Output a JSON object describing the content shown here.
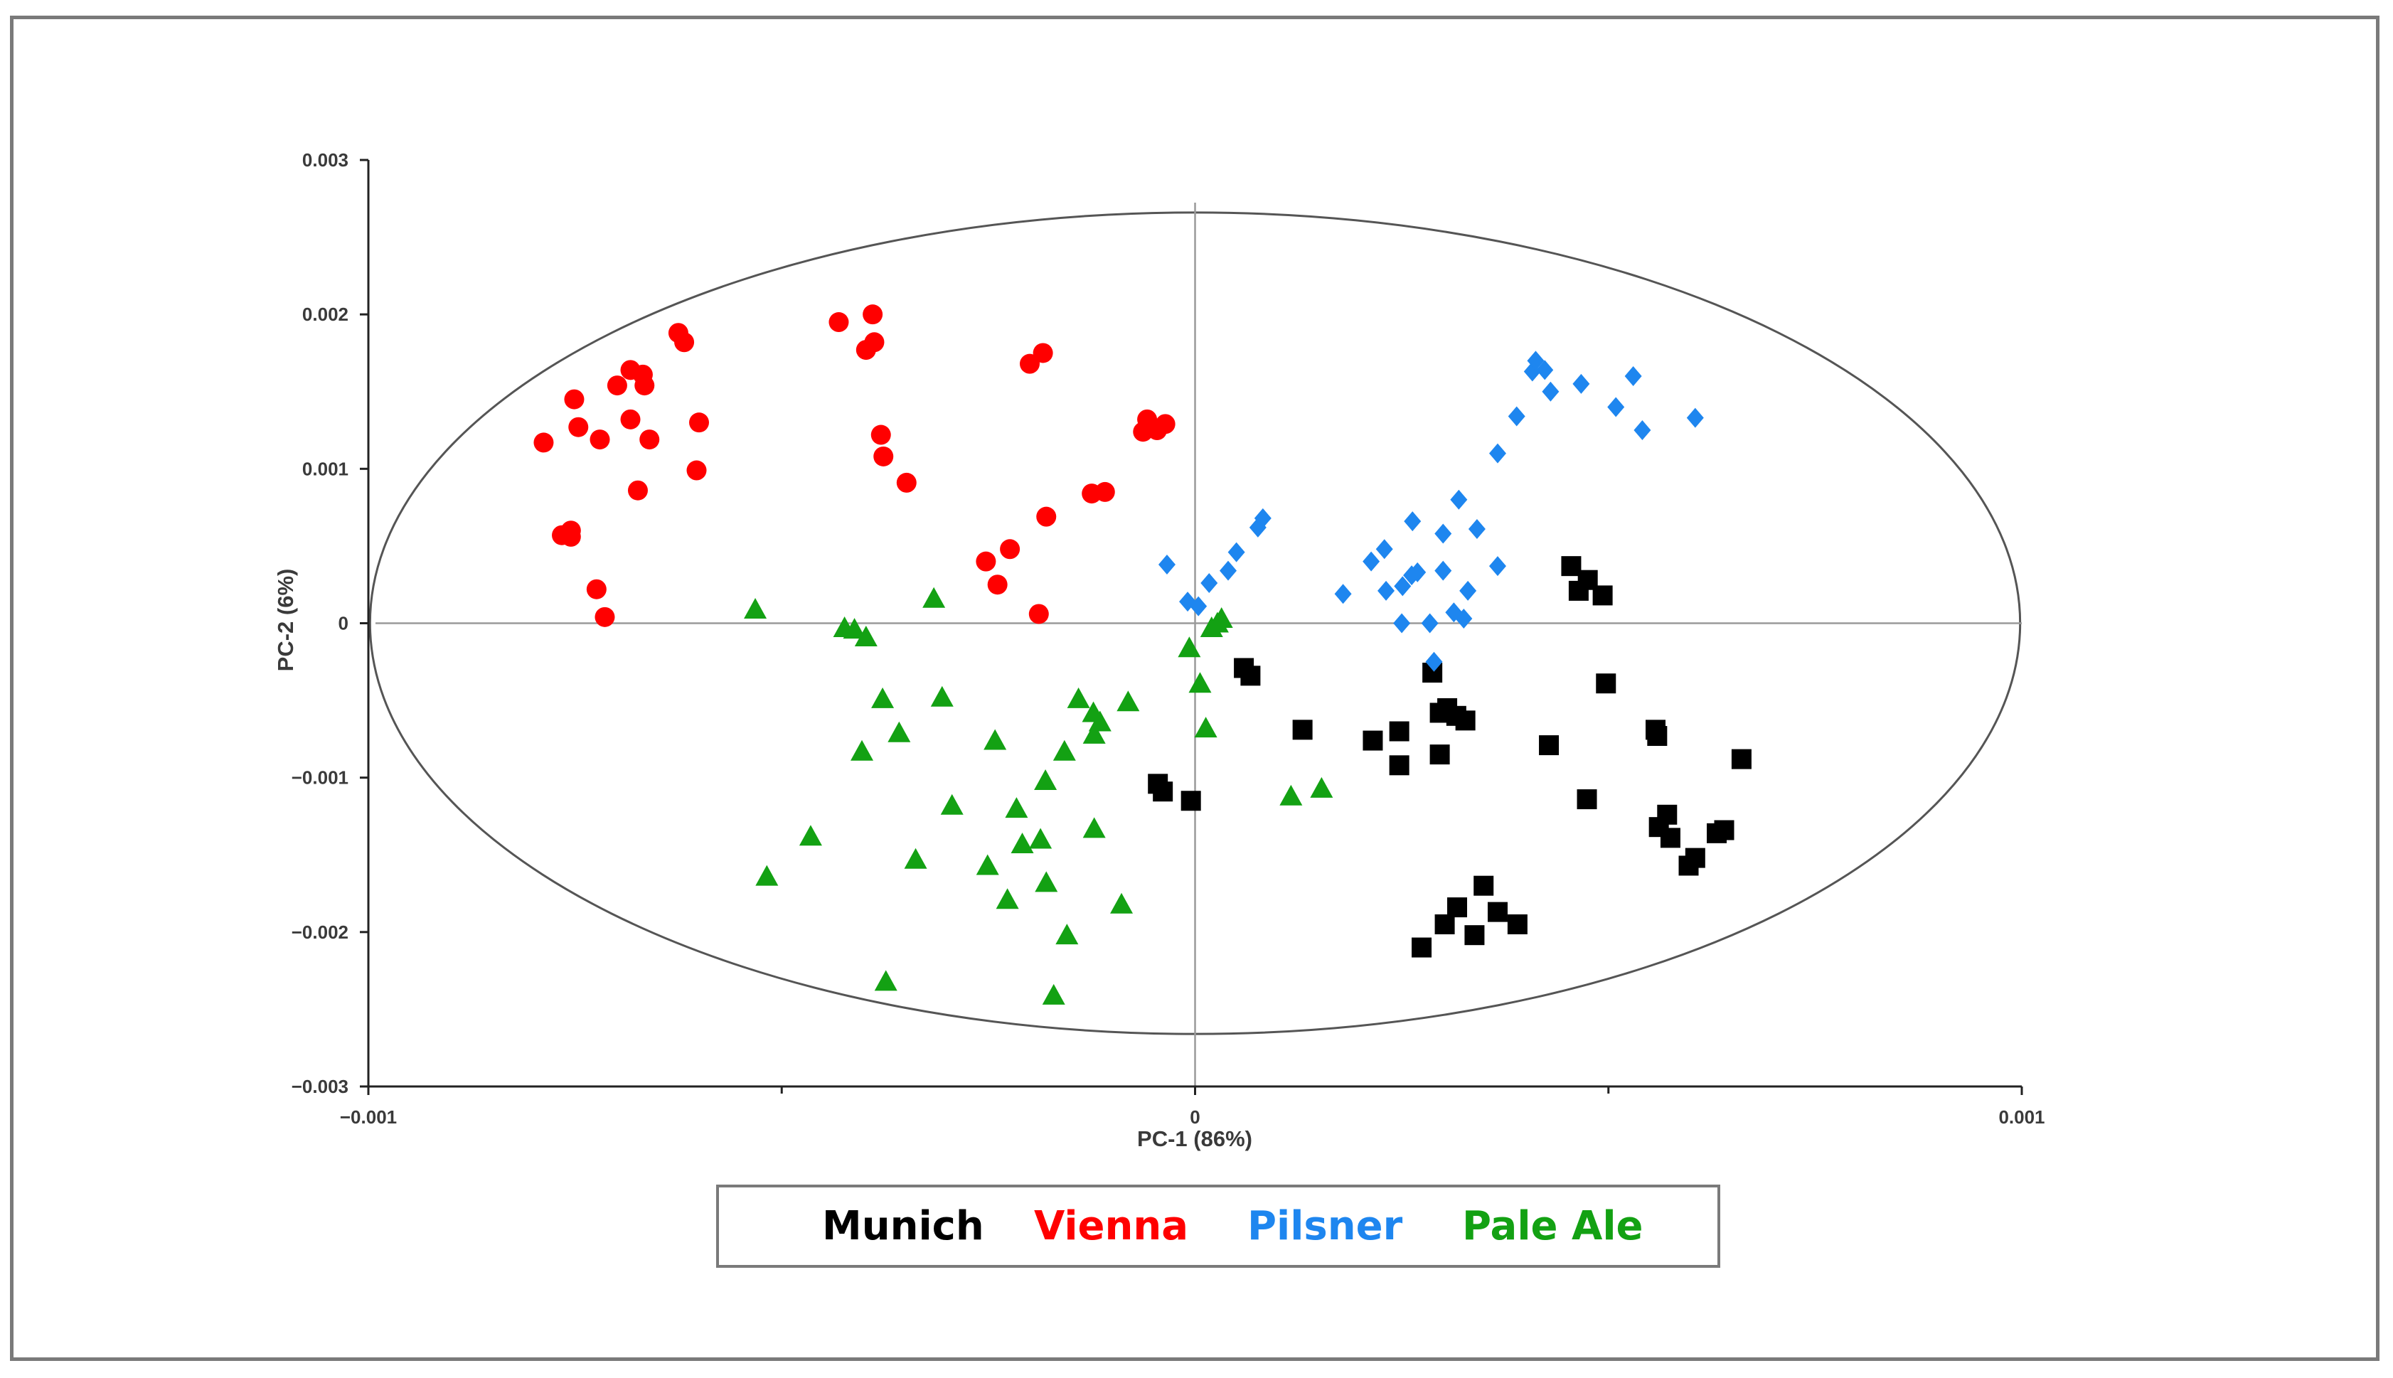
{
  "chart_data": {
    "type": "scatter",
    "title": "",
    "xlabel": "PC-1 (86%)",
    "ylabel": "PC-2 (6%)",
    "xlim": [
      -0.001,
      0.001
    ],
    "ylim": [
      -0.003,
      0.003
    ],
    "x_ticks": [
      {
        "value": -0.001,
        "label": "−0.001"
      },
      {
        "value": 0,
        "label": "0"
      },
      {
        "value": 0.001,
        "label": "0.001"
      }
    ],
    "y_ticks": [
      {
        "value": 0.003,
        "label": "0.003"
      },
      {
        "value": 0.002,
        "label": "0.002"
      },
      {
        "value": 0.001,
        "label": "0.001"
      },
      {
        "value": 0,
        "label": "0"
      },
      {
        "value": -0.001,
        "label": "−0.001"
      },
      {
        "value": -0.002,
        "label": "−0.002"
      },
      {
        "value": -0.003,
        "label": "−0.003"
      }
    ],
    "grid": false,
    "reference_lines": {
      "x": 0,
      "y": 0
    },
    "confidence_ellipse": {
      "center": [
        0,
        0
      ],
      "x_radius": 0.000998,
      "y_radius": 0.00266
    },
    "legend_position": "bottom",
    "series": [
      {
        "name": "Munich",
        "color": "#000000",
        "marker": "square",
        "points": [
          [
            5.9e-05,
            -0.00029
          ],
          [
            6.7e-05,
            -0.00034
          ],
          [
            -4.5e-05,
            -0.00104
          ],
          [
            -3.9e-05,
            -0.00109
          ],
          [
            -5e-06,
            -0.00115
          ],
          [
            0.00013,
            -0.00069
          ],
          [
            0.000215,
            -0.00076
          ],
          [
            0.000247,
            -0.0007
          ],
          [
            0.000247,
            -0.00092
          ],
          [
            0.000287,
            -0.00032
          ],
          [
            0.000296,
            -0.00058
          ],
          [
            0.000305,
            -0.00055
          ],
          [
            0.000316,
            -0.0006
          ],
          [
            0.000327,
            -0.00063
          ],
          [
            0.000296,
            -0.00085
          ],
          [
            0.000428,
            -0.00079
          ],
          [
            0.000455,
            0.00037
          ],
          [
            0.000464,
            0.00021
          ],
          [
            0.000475,
            0.00028
          ],
          [
            0.000493,
            0.00018
          ],
          [
            0.000497,
            -0.00039
          ],
          [
            0.000474,
            -0.00114
          ],
          [
            0.000557,
            -0.00069
          ],
          [
            0.000559,
            -0.00073
          ],
          [
            0.000571,
            -0.00124
          ],
          [
            0.000561,
            -0.00132
          ],
          [
            0.000575,
            -0.00139
          ],
          [
            0.000597,
            -0.00157
          ],
          [
            0.000605,
            -0.00152
          ],
          [
            0.000631,
            -0.00136
          ],
          [
            0.00064,
            -0.00134
          ],
          [
            0.000661,
            -0.00088
          ],
          [
            0.000274,
            -0.0021
          ],
          [
            0.000302,
            -0.00195
          ],
          [
            0.000317,
            -0.00184
          ],
          [
            0.000338,
            -0.00202
          ],
          [
            0.000349,
            -0.0017
          ],
          [
            0.000366,
            -0.00187
          ],
          [
            0.00039,
            -0.00195
          ]
        ]
      },
      {
        "name": "Vienna",
        "color": "#ff0000",
        "marker": "circle",
        "points": [
          [
            -0.000788,
            0.00117
          ],
          [
            -0.000766,
            0.00057
          ],
          [
            -0.000755,
            0.0006
          ],
          [
            -0.000755,
            0.00056
          ],
          [
            -0.000751,
            0.00145
          ],
          [
            -0.000746,
            0.00127
          ],
          [
            -0.000724,
            0.00022
          ],
          [
            -0.00072,
            0.00119
          ],
          [
            -0.000714,
            4e-05
          ],
          [
            -0.000699,
            0.00154
          ],
          [
            -0.000683,
            0.00164
          ],
          [
            -0.000668,
            0.00161
          ],
          [
            -0.000666,
            0.00154
          ],
          [
            -0.000683,
            0.00132
          ],
          [
            -0.000674,
            0.00086
          ],
          [
            -0.00066,
            0.00119
          ],
          [
            -0.000618,
            0.00182
          ],
          [
            -0.000625,
            0.00188
          ],
          [
            -0.0006,
            0.0013
          ],
          [
            -0.000603,
            0.00099
          ],
          [
            -0.000431,
            0.00195
          ],
          [
            -0.00039,
            0.002
          ],
          [
            -0.000398,
            0.00177
          ],
          [
            -0.000388,
            0.00182
          ],
          [
            -0.00038,
            0.00122
          ],
          [
            -0.000377,
            0.00108
          ],
          [
            -0.000349,
            0.00091
          ],
          [
            -0.000253,
            0.0004
          ],
          [
            -0.000224,
            0.00048
          ],
          [
            -0.000239,
            0.00025
          ],
          [
            -0.0002,
            0.00168
          ],
          [
            -0.000184,
            0.00175
          ],
          [
            -0.00018,
            0.00069
          ],
          [
            -0.000189,
            6e-05
          ],
          [
            -0.000125,
            0.00084
          ],
          [
            -0.000109,
            0.00085
          ],
          [
            -6.3e-05,
            0.00124
          ],
          [
            -5.8e-05,
            0.00132
          ],
          [
            -4.6e-05,
            0.00125
          ],
          [
            -3.6e-05,
            0.00129
          ]
        ]
      },
      {
        "name": "Pilsner",
        "color": "#1e86ef",
        "marker": "diamond",
        "points": [
          [
            -3.4e-05,
            0.00038
          ],
          [
            -9e-06,
            0.00014
          ],
          [
            4e-06,
            0.00011
          ],
          [
            1.7e-05,
            0.00026
          ],
          [
            4e-05,
            0.00034
          ],
          [
            5e-05,
            0.00046
          ],
          [
            7.6e-05,
            0.00062
          ],
          [
            8.2e-05,
            0.00068
          ],
          [
            0.000179,
            0.00019
          ],
          [
            0.000213,
            0.0004
          ],
          [
            0.000229,
            0.00048
          ],
          [
            0.000231,
            0.00021
          ],
          [
            0.000251,
            0.00024
          ],
          [
            0.00025,
            0.0
          ],
          [
            0.000262,
            0.00031
          ],
          [
            0.000263,
            0.00066
          ],
          [
            0.000269,
            0.00033
          ],
          [
            0.000284,
            0.0
          ],
          [
            0.0003,
            0.00034
          ],
          [
            0.0003,
            0.00058
          ],
          [
            0.000313,
            7e-05
          ],
          [
            0.000319,
            0.0008
          ],
          [
            0.000325,
            3e-05
          ],
          [
            0.00033,
            0.00021
          ],
          [
            0.000341,
            0.00061
          ],
          [
            0.000366,
            0.00037
          ],
          [
            0.000366,
            0.0011
          ],
          [
            0.000389,
            0.00134
          ],
          [
            0.000408,
            0.00163
          ],
          [
            0.000412,
            0.0017
          ],
          [
            0.000423,
            0.00164
          ],
          [
            0.00043,
            0.0015
          ],
          [
            0.000467,
            0.00155
          ],
          [
            0.000509,
            0.0014
          ],
          [
            0.00053,
            0.0016
          ],
          [
            0.000541,
            0.00125
          ],
          [
            0.000605,
            0.00133
          ],
          [
            0.000289,
            -0.00025
          ]
        ]
      },
      {
        "name": "Pale Ale",
        "color": "#13a113",
        "marker": "triangle",
        "points": [
          [
            -0.000532,
            9e-05
          ],
          [
            -0.000518,
            -0.00164
          ],
          [
            -0.000465,
            -0.00138
          ],
          [
            -0.000424,
            -3e-05
          ],
          [
            -0.000412,
            -4e-05
          ],
          [
            -0.000398,
            -9e-05
          ],
          [
            -0.000403,
            -0.00083
          ],
          [
            -0.000378,
            -0.00049
          ],
          [
            -0.000358,
            -0.00071
          ],
          [
            -0.000374,
            -0.00232
          ],
          [
            -0.000338,
            -0.00153
          ],
          [
            -0.000316,
            0.00016
          ],
          [
            -0.000306,
            -0.00048
          ],
          [
            -0.000294,
            -0.00118
          ],
          [
            -0.000251,
            -0.00157
          ],
          [
            -0.000242,
            -0.00076
          ],
          [
            -0.000227,
            -0.00179
          ],
          [
            -0.000209,
            -0.00143
          ],
          [
            -0.000216,
            -0.0012
          ],
          [
            -0.000187,
            -0.0014
          ],
          [
            -0.000181,
            -0.00102
          ],
          [
            -0.00018,
            -0.00168
          ],
          [
            -0.000171,
            -0.00241
          ],
          [
            -0.000158,
            -0.00083
          ],
          [
            -0.000155,
            -0.00202
          ],
          [
            -0.000141,
            -0.00049
          ],
          [
            -0.000123,
            -0.00058
          ],
          [
            -0.000122,
            -0.00072
          ],
          [
            -0.000115,
            -0.00064
          ],
          [
            -0.000122,
            -0.00133
          ],
          [
            -8.9e-05,
            -0.00182
          ],
          [
            -8.1e-05,
            -0.00051
          ],
          [
            -7e-06,
            -0.00016
          ],
          [
            6e-06,
            -0.00039
          ],
          [
            1.3e-05,
            -0.00068
          ],
          [
            2e-05,
            -3e-05
          ],
          [
            2.7e-05,
            -0.0
          ],
          [
            3.2e-05,
            3e-05
          ],
          [
            0.000116,
            -0.00112
          ],
          [
            0.000153,
            -0.00107
          ]
        ]
      }
    ]
  }
}
